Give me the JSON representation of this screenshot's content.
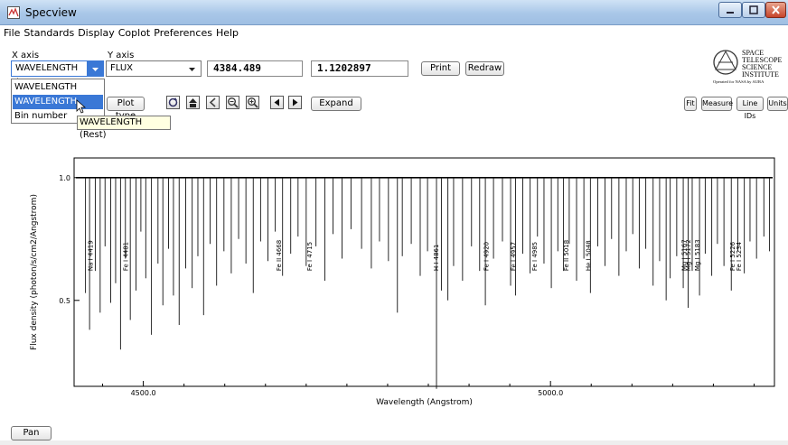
{
  "window": {
    "title": "Specview"
  },
  "menu": [
    "File",
    "Standards",
    "Display",
    "Coplot",
    "Preferences",
    "Help"
  ],
  "controls": {
    "x_axis_label": "X axis",
    "x_axis_value": "WAVELENGTH (Re...",
    "y_axis_label": "Y axis",
    "y_axis_value": "FLUX",
    "cursor_x": "4384.489",
    "cursor_y": "1.1202897",
    "print_label": "Print",
    "redraw_label": "Redraw",
    "plot_type_label": "Plot type",
    "expand_label": "Expand",
    "fit_label": "Fit",
    "measure_label": "Measure",
    "line_ids_label": "Line IDs",
    "units_label": "Units",
    "pan_label": "Pan"
  },
  "dropdown": {
    "options": [
      "WAVELENGTH",
      "WAVELENGTH (Rest)",
      "Bin number"
    ],
    "highlighted": "WAVELENGTH (Rest)"
  },
  "tooltip": {
    "text": "WAVELENGTH (Rest)"
  },
  "logo": {
    "lines": [
      "SPACE",
      "TELESCOPE",
      "SCIENCE",
      "INSTITUTE"
    ],
    "subtitle": "Operated for NASA by AURA"
  },
  "icons": [
    "refresh-icon",
    "home-icon",
    "back-icon",
    "zoom-out-icon",
    "zoom-in-icon",
    "scroll-left-icon",
    "scroll-right-icon"
  ],
  "chart_data": {
    "type": "line",
    "xlabel": "Wavelength (Angstrom)",
    "ylabel": "Flux density (photon/s/cm2/Angstrom)",
    "xlim": [
      4415,
      5275
    ],
    "ylim": [
      0.15,
      1.08
    ],
    "x_ticks": [
      4500.0,
      5000.0
    ],
    "x_tick_labels": [
      "4500.0",
      "5000.0"
    ],
    "y_ticks": [
      0.5,
      1.0
    ],
    "y_tick_labels": [
      "0.5",
      "1.0"
    ],
    "continuum": 1.0,
    "absorption_lines": [
      {
        "x": 4429,
        "depth": 0.47
      },
      {
        "x": 4434,
        "depth": 0.62
      },
      {
        "x": 4441,
        "depth": 0.38
      },
      {
        "x": 4447,
        "depth": 0.55
      },
      {
        "x": 4453,
        "depth": 0.28
      },
      {
        "x": 4460,
        "depth": 0.51
      },
      {
        "x": 4466,
        "depth": 0.43
      },
      {
        "x": 4472,
        "depth": 0.7
      },
      {
        "x": 4478,
        "depth": 0.33
      },
      {
        "x": 4484,
        "depth": 0.58
      },
      {
        "x": 4491,
        "depth": 0.46
      },
      {
        "x": 4497,
        "depth": 0.22
      },
      {
        "x": 4503,
        "depth": 0.41
      },
      {
        "x": 4510,
        "depth": 0.64
      },
      {
        "x": 4518,
        "depth": 0.35
      },
      {
        "x": 4524,
        "depth": 0.52
      },
      {
        "x": 4531,
        "depth": 0.29
      },
      {
        "x": 4537,
        "depth": 0.48
      },
      {
        "x": 4544,
        "depth": 0.6
      },
      {
        "x": 4552,
        "depth": 0.37
      },
      {
        "x": 4560,
        "depth": 0.45
      },
      {
        "x": 4567,
        "depth": 0.32
      },
      {
        "x": 4574,
        "depth": 0.56
      },
      {
        "x": 4582,
        "depth": 0.27
      },
      {
        "x": 4590,
        "depth": 0.44
      },
      {
        "x": 4599,
        "depth": 0.3
      },
      {
        "x": 4608,
        "depth": 0.39
      },
      {
        "x": 4617,
        "depth": 0.25
      },
      {
        "x": 4626,
        "depth": 0.35
      },
      {
        "x": 4635,
        "depth": 0.47
      },
      {
        "x": 4644,
        "depth": 0.26
      },
      {
        "x": 4653,
        "depth": 0.34
      },
      {
        "x": 4662,
        "depth": 0.22
      },
      {
        "x": 4671,
        "depth": 0.4
      },
      {
        "x": 4681,
        "depth": 0.31
      },
      {
        "x": 4690,
        "depth": 0.24
      },
      {
        "x": 4700,
        "depth": 0.36
      },
      {
        "x": 4712,
        "depth": 0.28
      },
      {
        "x": 4723,
        "depth": 0.42
      },
      {
        "x": 4733,
        "depth": 0.23
      },
      {
        "x": 4744,
        "depth": 0.33
      },
      {
        "x": 4755,
        "depth": 0.21
      },
      {
        "x": 4768,
        "depth": 0.29
      },
      {
        "x": 4780,
        "depth": 0.37
      },
      {
        "x": 4790,
        "depth": 0.26
      },
      {
        "x": 4801,
        "depth": 0.34
      },
      {
        "x": 4812,
        "depth": 0.55
      },
      {
        "x": 4818,
        "depth": 0.32
      },
      {
        "x": 4829,
        "depth": 0.27
      },
      {
        "x": 4840,
        "depth": 0.4
      },
      {
        "x": 4849,
        "depth": 0.3
      },
      {
        "x": 4860,
        "depth": 0.86
      },
      {
        "x": 4866,
        "depth": 0.46
      },
      {
        "x": 4874,
        "depth": 0.5
      },
      {
        "x": 4881,
        "depth": 0.36
      },
      {
        "x": 4892,
        "depth": 0.42
      },
      {
        "x": 4903,
        "depth": 0.28
      },
      {
        "x": 4913,
        "depth": 0.38
      },
      {
        "x": 4920,
        "depth": 0.52
      },
      {
        "x": 4930,
        "depth": 0.33
      },
      {
        "x": 4941,
        "depth": 0.26
      },
      {
        "x": 4951,
        "depth": 0.44
      },
      {
        "x": 4957,
        "depth": 0.48
      },
      {
        "x": 4966,
        "depth": 0.31
      },
      {
        "x": 4975,
        "depth": 0.39
      },
      {
        "x": 4984,
        "depth": 0.24
      },
      {
        "x": 4992,
        "depth": 0.35
      },
      {
        "x": 5001,
        "depth": 0.45
      },
      {
        "x": 5009,
        "depth": 0.3
      },
      {
        "x": 5016,
        "depth": 0.38
      },
      {
        "x": 5023,
        "depth": 0.27
      },
      {
        "x": 5032,
        "depth": 0.42
      },
      {
        "x": 5041,
        "depth": 0.33
      },
      {
        "x": 5049,
        "depth": 0.47
      },
      {
        "x": 5058,
        "depth": 0.28
      },
      {
        "x": 5067,
        "depth": 0.36
      },
      {
        "x": 5075,
        "depth": 0.25
      },
      {
        "x": 5084,
        "depth": 0.4
      },
      {
        "x": 5093,
        "depth": 0.3
      },
      {
        "x": 5101,
        "depth": 0.23
      },
      {
        "x": 5109,
        "depth": 0.37
      },
      {
        "x": 5117,
        "depth": 0.29
      },
      {
        "x": 5126,
        "depth": 0.44
      },
      {
        "x": 5134,
        "depth": 0.34
      },
      {
        "x": 5142,
        "depth": 0.5
      },
      {
        "x": 5147,
        "depth": 0.41
      },
      {
        "x": 5155,
        "depth": 0.32
      },
      {
        "x": 5163,
        "depth": 0.45
      },
      {
        "x": 5169,
        "depth": 0.53
      },
      {
        "x": 5174,
        "depth": 0.38
      },
      {
        "x": 5183,
        "depth": 0.48
      },
      {
        "x": 5190,
        "depth": 0.31
      },
      {
        "x": 5198,
        "depth": 0.4
      },
      {
        "x": 5205,
        "depth": 0.27
      },
      {
        "x": 5213,
        "depth": 0.36
      },
      {
        "x": 5222,
        "depth": 0.46
      },
      {
        "x": 5230,
        "depth": 0.3
      },
      {
        "x": 5238,
        "depth": 0.39
      },
      {
        "x": 5245,
        "depth": 0.26
      },
      {
        "x": 5253,
        "depth": 0.33
      },
      {
        "x": 5262,
        "depth": 0.24
      },
      {
        "x": 5269,
        "depth": 0.3
      }
    ],
    "line_ids": [
      {
        "x": 4438,
        "text": "Na I 4419"
      },
      {
        "x": 4481,
        "text": "Fe I 4481"
      },
      {
        "x": 4669,
        "text": "Fe II 4668"
      },
      {
        "x": 4707,
        "text": "Fe I 4715"
      },
      {
        "x": 4862,
        "text": "H I 4861"
      },
      {
        "x": 4924,
        "text": "Fe I 4920"
      },
      {
        "x": 4957,
        "text": "Fe I 4957"
      },
      {
        "x": 4983,
        "text": "Fe I 4985"
      },
      {
        "x": 5022,
        "text": "Fe II 5018"
      },
      {
        "x": 5049,
        "text": "He I 5048"
      },
      {
        "x": 5167,
        "text": "Mg I 5167"
      },
      {
        "x": 5172,
        "text": "Mg I 5172"
      },
      {
        "x": 5183,
        "text": "Mg I 5183"
      },
      {
        "x": 5226,
        "text": "Fe I 5226"
      },
      {
        "x": 5234,
        "text": "Fe I 5234"
      }
    ]
  }
}
